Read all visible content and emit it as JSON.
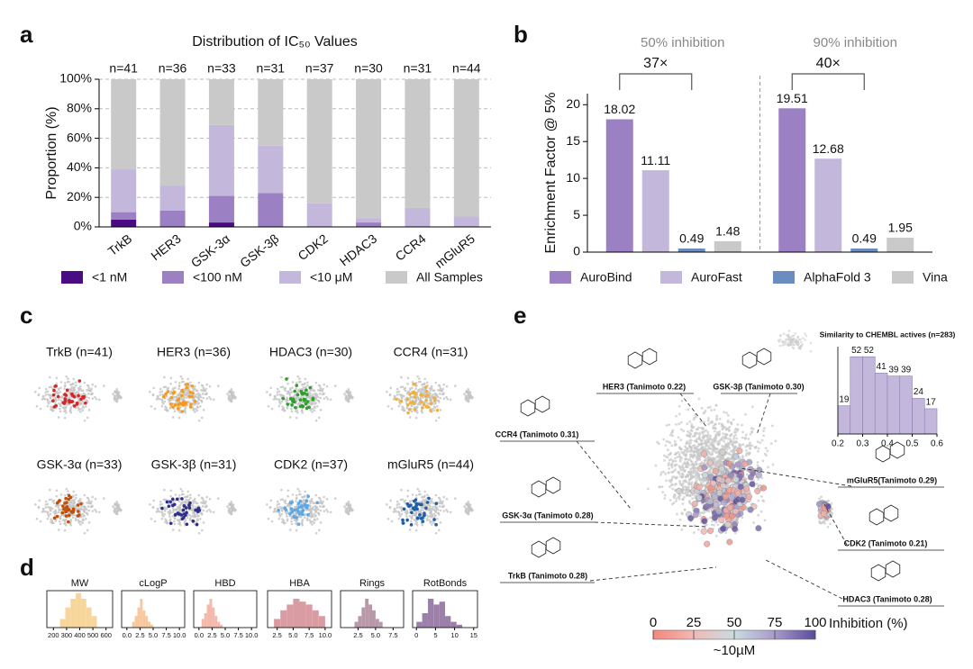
{
  "chart_data": [
    {
      "type": "bar",
      "stacked": true,
      "panel": "a",
      "title": "Distribution of IC₅₀ Values",
      "ylabel": "Proportion (%)",
      "categories": [
        "TrkB",
        "HER3",
        "GSK-3α",
        "GSK-3β",
        "CDK2",
        "HDAC3",
        "CCR4",
        "mGluR5"
      ],
      "annotations": [
        "n=41",
        "n=36",
        "n=33",
        "n=31",
        "n=37",
        "n=30",
        "n=31",
        "n=44"
      ],
      "series": [
        {
          "name": "<1 nM",
          "color": "#4a0c82",
          "values": [
            5,
            0,
            3,
            0,
            0,
            0,
            0,
            0
          ]
        },
        {
          "name": "<100 nM",
          "color": "#9b80c4",
          "values": [
            5,
            11,
            18,
            23,
            0,
            3,
            0,
            0
          ]
        },
        {
          "name": "<10 μM",
          "color": "#c3b8dc",
          "values": [
            29,
            17,
            48,
            32,
            16,
            3,
            13,
            7
          ]
        },
        {
          "name": "All Samples",
          "color": "#c9c9c9",
          "values": [
            61,
            72,
            31,
            45,
            84,
            94,
            87,
            93
          ]
        }
      ],
      "ylim": [
        0,
        100
      ],
      "yticks": [
        {
          "value": 0,
          "label": "0%"
        },
        {
          "value": 20,
          "label": "20%"
        },
        {
          "value": 40,
          "label": "40%"
        },
        {
          "value": 60,
          "label": "60%"
        },
        {
          "value": 80,
          "label": "80%"
        },
        {
          "value": 100,
          "label": "100%"
        }
      ],
      "grid": true
    },
    {
      "type": "bar",
      "stacked": false,
      "panel": "b",
      "ylabel": "Enrichment Factor @ 5%",
      "categories": [
        "50% inhibition",
        "90% inhibition"
      ],
      "annotations": [
        "37×",
        "40×"
      ],
      "series": [
        {
          "name": "AuroBind",
          "color": "#9b80c4",
          "values": [
            18.02,
            19.51
          ]
        },
        {
          "name": "AuroFast",
          "color": "#c3b8dc",
          "values": [
            11.11,
            12.68
          ]
        },
        {
          "name": "AlphaFold 3",
          "color": "#6b8cc0",
          "values": [
            0.49,
            0.49
          ]
        },
        {
          "name": "Vina",
          "color": "#c9c9c9",
          "values": [
            1.48,
            1.95
          ]
        }
      ],
      "ylim": [
        0,
        21.5
      ],
      "yticks": [
        0,
        5,
        10,
        15,
        20
      ],
      "grid": false
    },
    {
      "type": "scatter",
      "panel": "c",
      "subplots": [
        {
          "title": "TrkB (n=41)",
          "color": "#d62728"
        },
        {
          "title": "HER3 (n=36)",
          "color": "#f59a1c"
        },
        {
          "title": "HDAC3 (n=30)",
          "color": "#2e9e2e"
        },
        {
          "title": "CCR4 (n=31)",
          "color": "#f0b040"
        },
        {
          "title": "GSK-3α (n=33)",
          "color": "#c0500a"
        },
        {
          "title": "GSK-3β (n=31)",
          "color": "#2e2e8c"
        },
        {
          "title": "CDK2 (n=37)",
          "color": "#5aa8e8"
        },
        {
          "title": "mGluR5 (n=44)",
          "color": "#1f5ea8"
        }
      ]
    },
    {
      "type": "histogram",
      "panel": "d",
      "panels": [
        {
          "title": "MW",
          "color": "#f7d69c",
          "bins": [
            250,
            290,
            330,
            370,
            410,
            450,
            490,
            530
          ],
          "counts": [
            3,
            7,
            10,
            12,
            10,
            7,
            4
          ],
          "xlim": [
            150,
            650
          ],
          "xticks": [
            200,
            300,
            400,
            500,
            600
          ]
        },
        {
          "title": "cLogP",
          "color": "#f7c89e",
          "bins": [
            1,
            1.5,
            2,
            2.5,
            3,
            3.5,
            4,
            4.5,
            5
          ],
          "counts": [
            2,
            4,
            7,
            10,
            6,
            4,
            2,
            1
          ],
          "xlim": [
            -1,
            11
          ],
          "xticks": [
            {
              "value": 0,
              "label": "0.0"
            },
            2.5,
            {
              "value": 5,
              "label": "5.0"
            },
            7.5,
            {
              "value": 10,
              "label": "10.0"
            }
          ]
        },
        {
          "title": "HBD",
          "color": "#f4b9aa",
          "bins": [
            0.5,
            1,
            1.5,
            2,
            2.5,
            3,
            3.5,
            4,
            4.5
          ],
          "counts": [
            3,
            5,
            8,
            10,
            7,
            4,
            2,
            1
          ],
          "xlim": [
            -1,
            11
          ],
          "xticks": [
            {
              "value": 0,
              "label": "0.0"
            },
            2.5,
            {
              "value": 5,
              "label": "5.0"
            },
            7.5,
            {
              "value": 10,
              "label": "10.0"
            }
          ]
        },
        {
          "title": "HBA",
          "color": "#d99ca2",
          "bins": [
            2,
            3,
            4,
            5,
            6,
            7,
            8,
            9,
            10
          ],
          "counts": [
            3,
            6,
            8,
            10,
            9,
            8,
            6,
            4
          ],
          "xlim": [
            1,
            11
          ],
          "xticks": [
            2.5,
            {
              "value": 5,
              "label": "5.0"
            },
            7.5,
            {
              "value": 10,
              "label": "10.0"
            }
          ]
        },
        {
          "title": "Rings",
          "color": "#b998aa",
          "bins": [
            2,
            2.5,
            3,
            3.5,
            4,
            4.5,
            5,
            5.5,
            6
          ],
          "counts": [
            2,
            4,
            7,
            10,
            8,
            6,
            3,
            2
          ],
          "xlim": [
            0,
            9
          ],
          "xticks": [
            2.5,
            {
              "value": 5,
              "label": "5.0"
            },
            7.5
          ]
        },
        {
          "title": "RotBonds",
          "color": "#9c80aa",
          "bins": [
            0,
            1.5,
            3,
            4.5,
            6,
            7.5,
            9,
            10.5,
            12
          ],
          "counts": [
            2,
            5,
            10,
            8,
            9,
            4,
            2,
            1
          ],
          "xlim": [
            -1,
            16
          ],
          "xticks": [
            0,
            5,
            10,
            15
          ]
        }
      ]
    },
    {
      "type": "scatter",
      "panel": "e",
      "colorbar": {
        "label": "Inhibition (%)",
        "note": "~10µM",
        "lim": [
          0,
          100
        ],
        "ticks": [
          0,
          25,
          50,
          75,
          100
        ]
      },
      "inset": {
        "title": "Similarity to CHEMBL actives (n=283)",
        "color": "#c3b8dc",
        "bins": [
          0.2,
          0.25,
          0.3,
          0.35,
          0.4,
          0.45,
          0.5,
          0.55,
          0.6
        ],
        "counts": [
          19,
          52,
          52,
          41,
          39,
          39,
          24,
          17
        ],
        "xlim": [
          0.2,
          0.6
        ],
        "xticks": [
          0.2,
          0.3,
          0.4,
          0.5,
          0.6
        ]
      },
      "annotations": [
        "HER3 (Tanimoto 0.22)",
        "GSK-3β (Tanimoto 0.30)",
        "CCR4 (Tanimoto 0.31)",
        "mGluR5(Tanimoto 0.29)",
        "GSK-3α (Tanimoto 0.28)",
        "CDK2 (Tanimoto 0.21)",
        "TrkB (Tanimoto 0.28)",
        "HDAC3 (Tanimoto 0.28)"
      ]
    }
  ]
}
